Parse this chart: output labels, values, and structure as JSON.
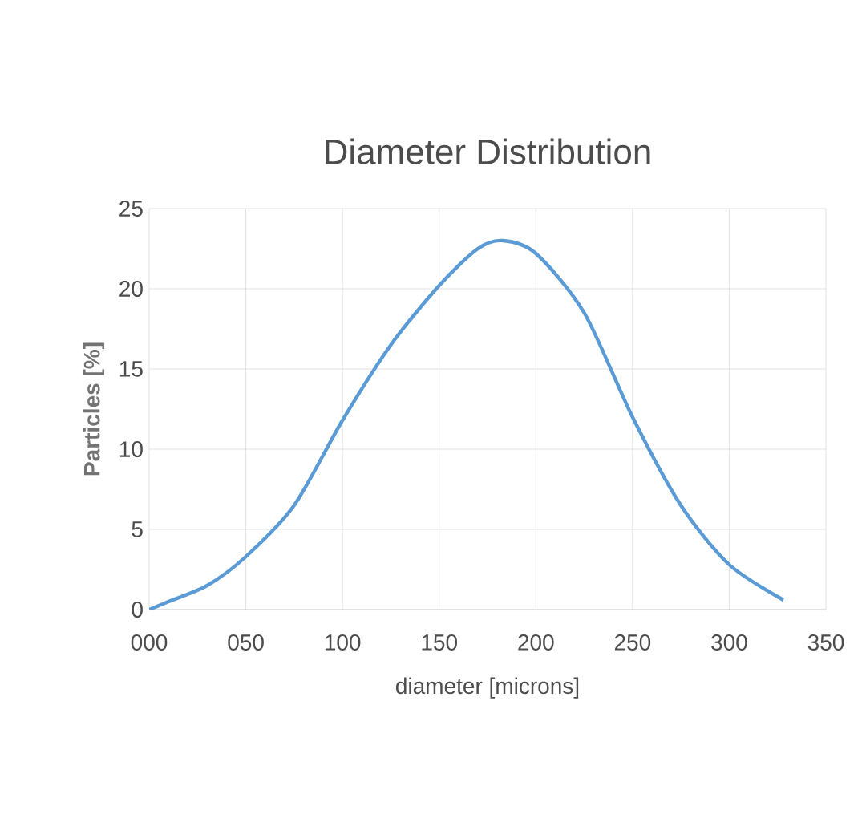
{
  "chart_data": {
    "type": "line",
    "title": "Diameter Distribution",
    "xlabel": "diameter [microns]",
    "ylabel": "Particles [%]",
    "x": [
      0,
      10,
      30,
      50,
      75,
      100,
      125,
      150,
      170,
      183,
      200,
      225,
      250,
      275,
      300,
      328
    ],
    "series": [
      {
        "color": "#5b9bd5",
        "values": [
          0,
          0.5,
          1.5,
          3.3,
          6.5,
          11.8,
          16.5,
          20.2,
          22.5,
          23,
          22.2,
          18.5,
          12,
          6.5,
          2.8,
          0.6
        ]
      }
    ],
    "xlim": [
      0,
      350
    ],
    "ylim": [
      0,
      25
    ],
    "xticks": [
      {
        "value": 0,
        "label": "000"
      },
      {
        "value": 50,
        "label": "050"
      },
      100,
      150,
      200,
      250,
      300,
      350
    ],
    "yticks": [
      0,
      5,
      10,
      15,
      20,
      25
    ],
    "grid": true,
    "marker": "none",
    "line_style": "solid"
  }
}
